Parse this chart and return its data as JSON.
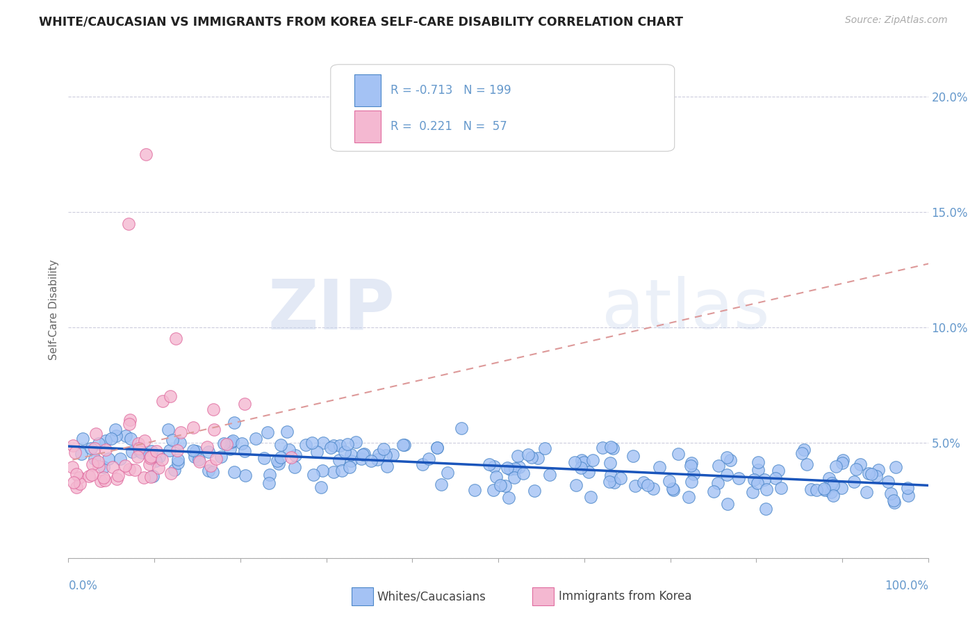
{
  "title": "WHITE/CAUCASIAN VS IMMIGRANTS FROM KOREA SELF-CARE DISABILITY CORRELATION CHART",
  "source_text": "Source: ZipAtlas.com",
  "ylabel": "Self-Care Disability",
  "yticks": [
    0.0,
    0.05,
    0.1,
    0.15,
    0.2
  ],
  "ytick_labels": [
    "",
    "5.0%",
    "10.0%",
    "15.0%",
    "20.0%"
  ],
  "xlim": [
    0.0,
    1.0
  ],
  "ylim": [
    0.0,
    0.215
  ],
  "blue_color": "#4a86c8",
  "blue_fill": "#a4c2f4",
  "pink_color": "#e06c9f",
  "pink_fill": "#f4b8d1",
  "blue_line_color": "#1a55bb",
  "pink_line_color": "#dd9999",
  "title_color": "#222222",
  "axis_color": "#6699cc",
  "background_color": "#ffffff",
  "grid_color": "#ccccdd",
  "legend_R_blue": "R = -0.713",
  "legend_N_blue": "N = 199",
  "legend_R_pink": "R =  0.221",
  "legend_N_pink": "N =  57",
  "seed": 42
}
